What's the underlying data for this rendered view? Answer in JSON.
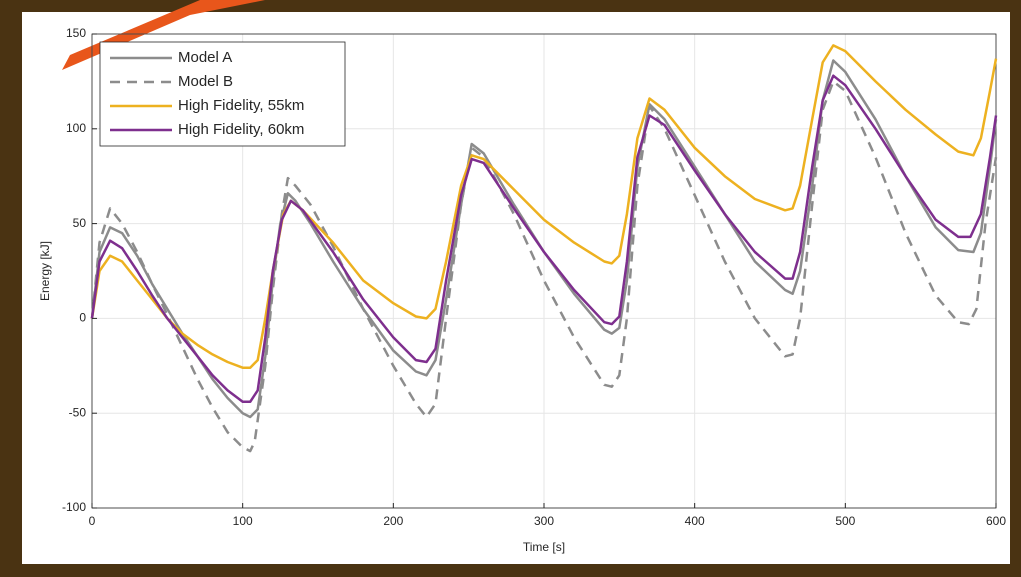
{
  "chart_data": {
    "type": "line",
    "x_label": "Time [s]",
    "y_label": "Energy [kJ]",
    "xlim": [
      0,
      600
    ],
    "xticks": [
      0,
      100,
      200,
      300,
      400,
      500,
      600
    ],
    "ylim": [
      -100,
      150
    ],
    "yticks": [
      -100,
      -50,
      0,
      50,
      100,
      150
    ],
    "grid": true,
    "legend": "upper left",
    "series": [
      {
        "name": "Model A",
        "color": "#8c8c8c",
        "dash": false,
        "x": [
          0,
          5,
          12,
          20,
          30,
          40,
          50,
          60,
          70,
          80,
          90,
          100,
          105,
          110,
          115,
          120,
          125,
          130,
          135,
          145,
          160,
          180,
          200,
          215,
          222,
          228,
          235,
          245,
          252,
          260,
          280,
          300,
          320,
          340,
          345,
          350,
          355,
          362,
          370,
          380,
          400,
          420,
          440,
          460,
          465,
          470,
          478,
          485,
          492,
          500,
          520,
          540,
          560,
          575,
          585,
          590,
          596,
          600
        ],
        "values": [
          0,
          35,
          48,
          45,
          33,
          18,
          5,
          -8,
          -20,
          -32,
          -42,
          -50,
          -52,
          -48,
          -20,
          20,
          50,
          66,
          62,
          50,
          30,
          5,
          -17,
          -28,
          -30,
          -22,
          10,
          60,
          92,
          87,
          60,
          35,
          13,
          -6,
          -8,
          -5,
          20,
          80,
          113,
          105,
          80,
          55,
          30,
          15,
          13,
          25,
          70,
          115,
          136,
          130,
          105,
          75,
          48,
          36,
          35,
          45,
          80,
          105
        ]
      },
      {
        "name": "Model B",
        "color": "#8c8c8c",
        "dash": true,
        "x": [
          0,
          5,
          12,
          20,
          30,
          40,
          50,
          60,
          70,
          80,
          90,
          100,
          105,
          108,
          115,
          120,
          126,
          130,
          135,
          145,
          160,
          180,
          200,
          215,
          222,
          228,
          235,
          245,
          252,
          260,
          280,
          300,
          320,
          340,
          345,
          350,
          355,
          362,
          370,
          380,
          400,
          420,
          440,
          460,
          465,
          470,
          478,
          485,
          492,
          500,
          520,
          540,
          560,
          575,
          582,
          587,
          593,
          600
        ],
        "values": [
          0,
          40,
          58,
          50,
          35,
          18,
          2,
          -15,
          -32,
          -47,
          -60,
          -68,
          -70,
          -65,
          -25,
          15,
          55,
          74,
          70,
          60,
          38,
          5,
          -25,
          -45,
          -52,
          -45,
          0,
          60,
          90,
          85,
          55,
          20,
          -10,
          -35,
          -36,
          -30,
          0,
          70,
          112,
          100,
          65,
          30,
          0,
          -20,
          -19,
          0,
          60,
          110,
          125,
          120,
          85,
          45,
          12,
          -2,
          -3,
          5,
          50,
          85
        ]
      },
      {
        "name": "High Fidelity, 55km",
        "color": "#edb120",
        "dash": false,
        "x": [
          0,
          5,
          12,
          20,
          30,
          40,
          50,
          60,
          70,
          80,
          90,
          100,
          105,
          110,
          115,
          120,
          127,
          132,
          140,
          160,
          180,
          200,
          215,
          222,
          228,
          235,
          245,
          252,
          260,
          280,
          300,
          320,
          340,
          345,
          350,
          355,
          362,
          370,
          380,
          400,
          420,
          440,
          460,
          465,
          470,
          478,
          485,
          492,
          500,
          520,
          540,
          560,
          575,
          585,
          590,
          596,
          600
        ],
        "values": [
          0,
          25,
          33,
          30,
          20,
          10,
          0,
          -8,
          -14,
          -19,
          -23,
          -26,
          -26,
          -22,
          0,
          25,
          55,
          62,
          57,
          40,
          20,
          8,
          1,
          0,
          5,
          30,
          70,
          86,
          84,
          68,
          52,
          40,
          30,
          29,
          33,
          55,
          95,
          116,
          110,
          90,
          75,
          63,
          57,
          58,
          70,
          105,
          135,
          144,
          141,
          125,
          110,
          97,
          88,
          86,
          95,
          120,
          137
        ]
      },
      {
        "name": "High Fidelity, 60km",
        "color": "#7e2f8e",
        "dash": false,
        "x": [
          0,
          5,
          12,
          20,
          30,
          40,
          50,
          60,
          70,
          80,
          90,
          100,
          105,
          110,
          115,
          120,
          126,
          132,
          140,
          160,
          180,
          200,
          215,
          222,
          228,
          235,
          245,
          252,
          260,
          280,
          300,
          320,
          340,
          345,
          350,
          355,
          362,
          370,
          380,
          400,
          420,
          440,
          460,
          465,
          470,
          478,
          485,
          492,
          500,
          520,
          540,
          560,
          575,
          583,
          590,
          596,
          600
        ],
        "values": [
          0,
          30,
          41,
          37,
          25,
          12,
          0,
          -10,
          -20,
          -30,
          -38,
          -44,
          -44,
          -38,
          -10,
          25,
          52,
          62,
          57,
          35,
          10,
          -10,
          -22,
          -23,
          -16,
          20,
          65,
          84,
          82,
          58,
          35,
          15,
          -2,
          -3,
          1,
          30,
          85,
          107,
          102,
          78,
          55,
          35,
          21,
          21,
          35,
          80,
          115,
          128,
          123,
          100,
          75,
          52,
          43,
          43,
          55,
          85,
          107
        ]
      }
    ]
  }
}
